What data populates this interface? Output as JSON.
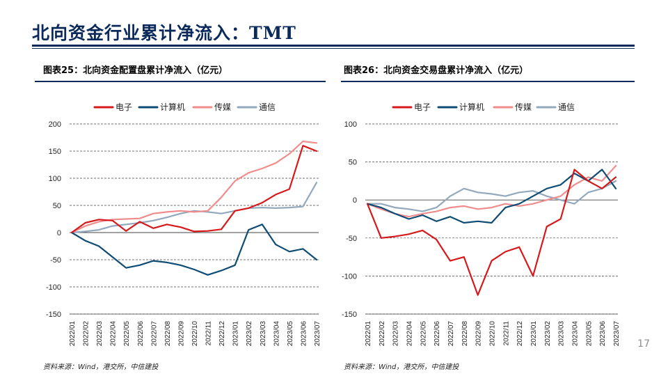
{
  "page": {
    "title": "北向资金行业累计净流入：TMT",
    "page_number": "17"
  },
  "colors": {
    "electronics": "#d7191c",
    "computer": "#0f4c75",
    "media": "#f08c8c",
    "telecom": "#92a9bd",
    "navy": "#0b2a5b"
  },
  "chart_data": [
    {
      "type": "line",
      "title": "图表25：北向资金配置盘累计净流入（亿元）",
      "source": "资料来源：Wind，港交所，中信建投",
      "ylim": [
        -150,
        200
      ],
      "yticks": [
        -150,
        -100,
        -50,
        0,
        50,
        100,
        150,
        200
      ],
      "grid": true,
      "legend_position": "top",
      "x_labels": [
        "2022/01",
        "2022/02",
        "2022/03",
        "2022/04",
        "2022/05",
        "2022/06",
        "2022/07",
        "2022/08",
        "2022/09",
        "2022/10",
        "2022/11",
        "2022/12",
        "2023/01",
        "2023/02",
        "2023/03",
        "2023/04",
        "2023/05",
        "2023/06",
        "2023/07"
      ],
      "series": [
        {
          "name": "电子",
          "color": "#d7191c",
          "values": [
            0,
            18,
            24,
            22,
            3,
            20,
            8,
            15,
            10,
            2,
            3,
            6,
            40,
            45,
            55,
            70,
            80,
            160,
            150
          ]
        },
        {
          "name": "计算机",
          "color": "#0f4c75",
          "values": [
            0,
            -15,
            -25,
            -45,
            -65,
            -60,
            -52,
            -55,
            -60,
            -68,
            -78,
            -70,
            -60,
            5,
            15,
            -22,
            -35,
            -30,
            -50
          ]
        },
        {
          "name": "传媒",
          "color": "#f08c8c",
          "values": [
            0,
            12,
            20,
            24,
            25,
            26,
            35,
            38,
            40,
            38,
            40,
            65,
            95,
            110,
            118,
            128,
            145,
            168,
            165
          ]
        },
        {
          "name": "通信",
          "color": "#92a9bd",
          "values": [
            0,
            2,
            5,
            12,
            15,
            18,
            22,
            28,
            35,
            40,
            38,
            35,
            40,
            45,
            46,
            45,
            46,
            48,
            92
          ]
        }
      ]
    },
    {
      "type": "line",
      "title": "图表26：北向资金交易盘累计净流入（亿元）",
      "source": "资料来源：Wind，港交所，中信建投",
      "ylim": [
        -150,
        100
      ],
      "yticks": [
        -150,
        -100,
        -50,
        0,
        50,
        100
      ],
      "grid": true,
      "legend_position": "top",
      "x_labels": [
        "2022/01",
        "2022/02",
        "2022/03",
        "2022/04",
        "2022/05",
        "2022/06",
        "2022/07",
        "2022/08",
        "2022/09",
        "2022/10",
        "2022/11",
        "2022/12",
        "2023/01",
        "2023/02",
        "2023/03",
        "2023/04",
        "2023/05",
        "2023/06",
        "2023/07"
      ],
      "series": [
        {
          "name": "电子",
          "color": "#d7191c",
          "values": [
            -5,
            -50,
            -48,
            -45,
            -40,
            -52,
            -80,
            -75,
            -125,
            -80,
            -68,
            -62,
            -100,
            -35,
            -25,
            40,
            25,
            15,
            30
          ]
        },
        {
          "name": "计算机",
          "color": "#0f4c75",
          "values": [
            -5,
            -10,
            -18,
            -25,
            -20,
            -28,
            -22,
            -30,
            -28,
            -30,
            -10,
            -5,
            5,
            15,
            20,
            35,
            25,
            40,
            15
          ]
        },
        {
          "name": "传媒",
          "color": "#f08c8c",
          "values": [
            -5,
            -12,
            -18,
            -22,
            -18,
            -15,
            -10,
            -8,
            -12,
            -10,
            -5,
            -8,
            -5,
            0,
            5,
            20,
            30,
            25,
            45
          ]
        },
        {
          "name": "通信",
          "color": "#92a9bd",
          "values": [
            -5,
            -5,
            -10,
            -12,
            -15,
            -10,
            5,
            15,
            10,
            8,
            5,
            10,
            12,
            5,
            0,
            -5,
            10,
            15,
            25
          ]
        }
      ]
    }
  ]
}
